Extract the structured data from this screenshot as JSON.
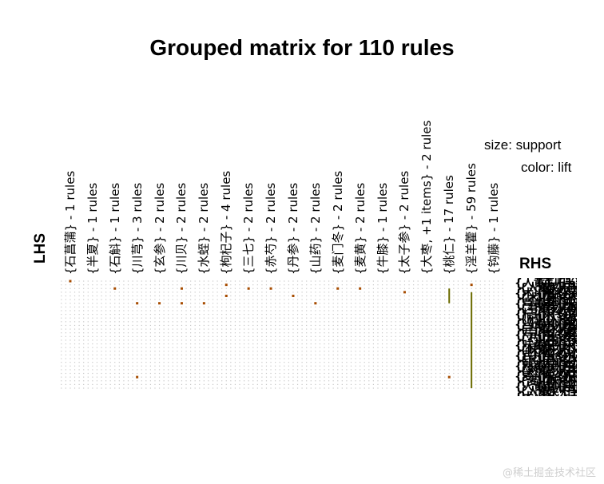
{
  "title": "Grouped matrix for 110 rules",
  "axis": {
    "lhs": "LHS",
    "rhs": "RHS"
  },
  "legend": {
    "size": "size: support",
    "color": "color: lift"
  },
  "watermark": "@稀土掘金技术社区",
  "chart_data": {
    "type": "scatter",
    "title": "Grouped matrix for 110 rules",
    "lhs_groups": [
      "{石菖蒲} - 1 rules",
      "{半夏} - 1 rules",
      "{石斛} - 1 rules",
      "{川芎} - 3 rules",
      "{玄参} - 2 rules",
      "{川贝} - 2 rules",
      "{水蛭} - 2 rules",
      "{枸杞子} - 4 rules",
      "{三七} - 2 rules",
      "{赤芍} - 2 rules",
      "{丹参} - 2 rules",
      "{山药} - 2 rules",
      "{麦门冬} - 2 rules",
      "{麦黄} - 2 rules",
      "{牛膝} - 1 rules",
      "{太子参} - 2 rules",
      "{大枣, +1 items} - 2 rules",
      "{桃仁} - 17 rules",
      "{淫羊藿} - 59 rules",
      "{钩藤} - 1 rules"
    ],
    "rhs_label_count": 30,
    "grid": true,
    "legend_position": "top-right",
    "points": [
      {
        "group": 0,
        "rhs": 0
      },
      {
        "group": 2,
        "rhs": 2
      },
      {
        "group": 3,
        "rhs": 6
      },
      {
        "group": 3,
        "rhs": 26
      },
      {
        "group": 4,
        "rhs": 6
      },
      {
        "group": 5,
        "rhs": 2
      },
      {
        "group": 5,
        "rhs": 6
      },
      {
        "group": 6,
        "rhs": 6
      },
      {
        "group": 7,
        "rhs": 1
      },
      {
        "group": 7,
        "rhs": 4
      },
      {
        "group": 8,
        "rhs": 2
      },
      {
        "group": 9,
        "rhs": 2
      },
      {
        "group": 10,
        "rhs": 4
      },
      {
        "group": 11,
        "rhs": 6
      },
      {
        "group": 12,
        "rhs": 2
      },
      {
        "group": 13,
        "rhs": 2
      },
      {
        "group": 15,
        "rhs": 3
      },
      {
        "group": 17,
        "rhs": 26
      },
      {
        "group": 18,
        "rhs": 1
      }
    ],
    "highlights": [
      {
        "group": 17,
        "rhs_start": 2,
        "rhs_end": 6
      },
      {
        "group": 18,
        "rhs_start": 3,
        "rhs_end": 29
      }
    ]
  }
}
